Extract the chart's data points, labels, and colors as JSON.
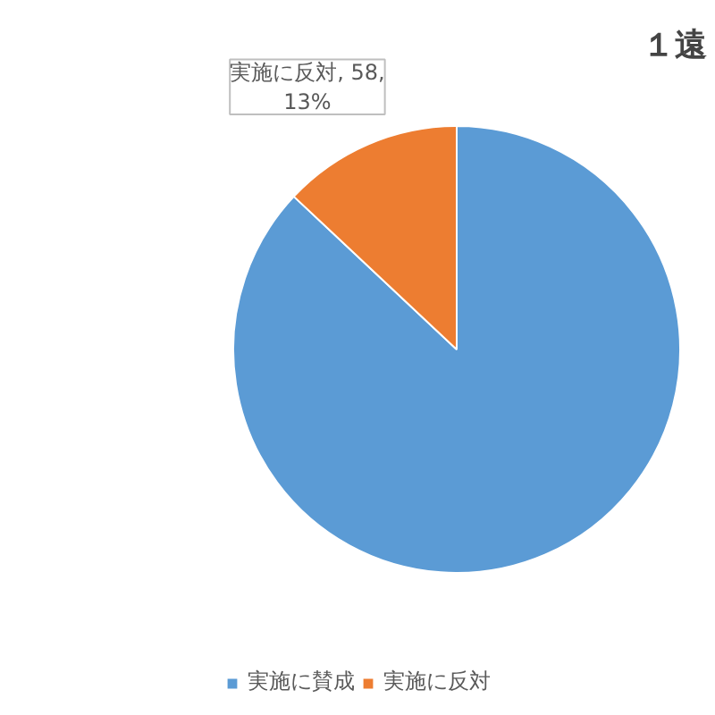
{
  "chart_data": {
    "type": "pie",
    "title": "１遠",
    "categories": [
      "実施に賛成",
      "実施に反対"
    ],
    "values": [
      87,
      13
    ],
    "colors": [
      "#5b9bd5",
      "#ed7d31"
    ],
    "value_labels": [
      null,
      "実施に反対, 58,\n13%"
    ],
    "legend": "bottom"
  }
}
